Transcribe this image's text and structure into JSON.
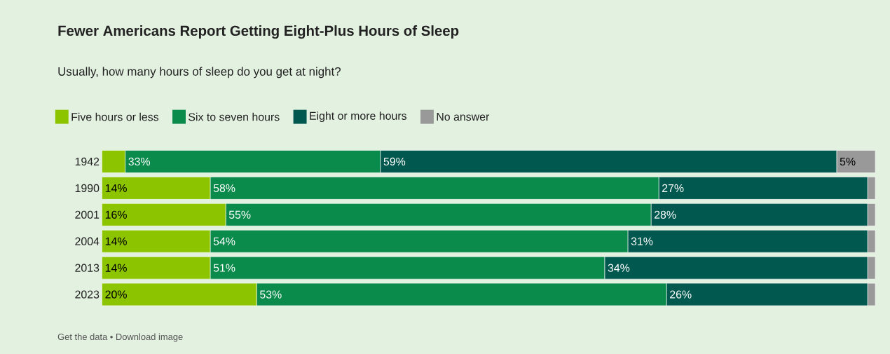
{
  "chart_data": {
    "type": "bar",
    "orientation": "horizontal",
    "stacked": true,
    "legend": "top",
    "title": "Fewer Americans Report Getting Eight-Plus Hours of Sleep",
    "subtitle": "Usually, how many hours of sleep do you get at night?",
    "categories": [
      "1942",
      "1990",
      "2001",
      "2004",
      "2013",
      "2023"
    ],
    "series": [
      {
        "name": "Five hours or less",
        "color": "#8cc400",
        "values": [
          3,
          14,
          16,
          14,
          14,
          20
        ],
        "value_labels": [
          null,
          "14%",
          "16%",
          "14%",
          "14%",
          "20%"
        ]
      },
      {
        "name": "Six to seven hours",
        "color": "#0a8a4b",
        "values": [
          33,
          58,
          55,
          54,
          51,
          53
        ],
        "value_labels": [
          "33%",
          "58%",
          "55%",
          "54%",
          "51%",
          "53%"
        ]
      },
      {
        "name": "Eight or more hours",
        "color": "#00584f",
        "values": [
          59,
          27,
          28,
          31,
          34,
          26
        ],
        "value_labels": [
          "59%",
          "27%",
          "28%",
          "31%",
          "34%",
          "26%"
        ]
      },
      {
        "name": "No answer",
        "color": "#999999",
        "values": [
          5,
          1,
          1,
          1,
          1,
          1
        ],
        "value_labels": [
          "5%",
          null,
          null,
          null,
          null,
          null
        ]
      }
    ],
    "annotations": [
      "Get the data • Download image"
    ]
  }
}
